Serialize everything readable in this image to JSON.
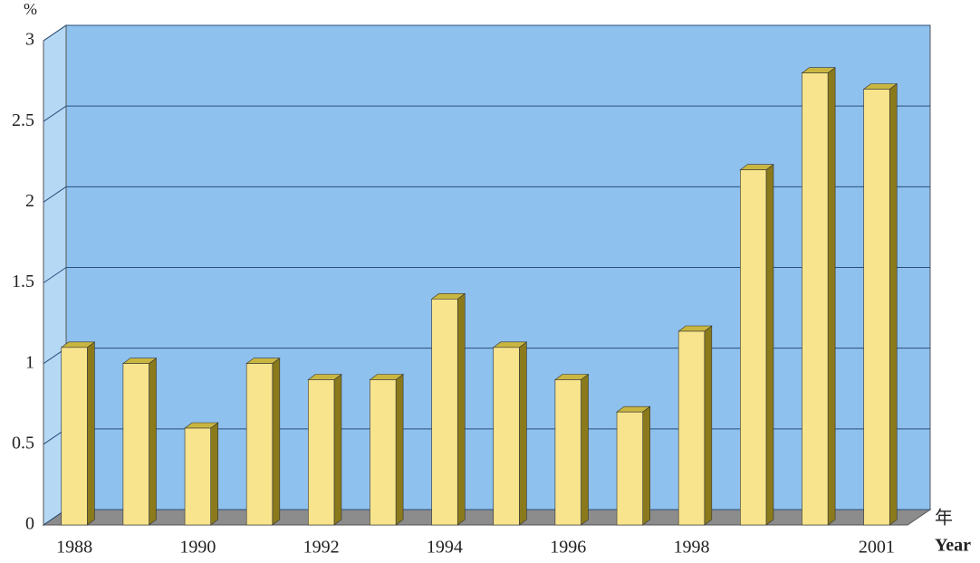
{
  "chart_data": {
    "type": "bar",
    "y_label": "%",
    "x_label_cn": "年",
    "x_label": "Year",
    "categories": [
      "1988",
      null,
      "1990",
      null,
      "1992",
      null,
      "1994",
      null,
      "1996",
      null,
      "1998",
      null,
      null,
      "2001"
    ],
    "values": [
      1.1,
      1.0,
      0.6,
      1.0,
      0.9,
      0.9,
      1.4,
      1.1,
      0.9,
      0.7,
      1.2,
      2.2,
      2.8,
      2.7
    ],
    "color": "#f7e48c",
    "side_color": "#8a7a1c",
    "top_color": "#c9b640",
    "wall_color": "#8fc1ee",
    "floor_color": "#8c8c8c",
    "ylim": [
      0,
      3
    ],
    "yticks": [
      0,
      0.5,
      1,
      1.5,
      2,
      2.5,
      3
    ],
    "grid": true
  }
}
